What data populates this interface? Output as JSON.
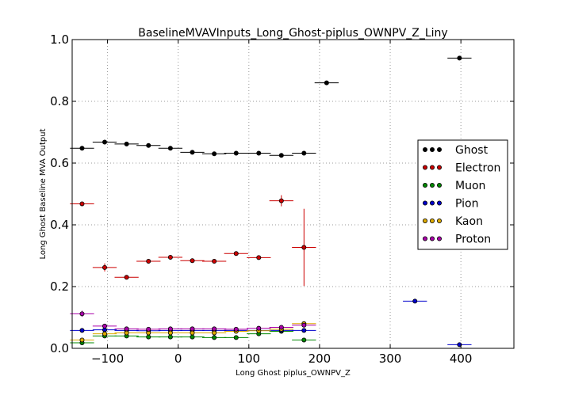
{
  "chart_data": {
    "type": "scatter",
    "title": "BaselineMVAVInputs_Long_Ghost-piplus_OWNPV_Z_Liny",
    "xlabel": "Long Ghost piplus_OWNPV_Z",
    "ylabel": "Long Ghost Baseline MVA Output",
    "xlim": [
      -150,
      475
    ],
    "ylim": [
      0.0,
      1.0
    ],
    "xticks": [
      -100,
      0,
      100,
      200,
      300,
      400
    ],
    "xtick_labels": [
      "−100",
      "0",
      "100",
      "200",
      "300",
      "400"
    ],
    "yticks": [
      0.0,
      0.2,
      0.4,
      0.6,
      0.8,
      1.0
    ],
    "ytick_labels": [
      "0.0",
      "0.2",
      "0.4",
      "0.6",
      "0.8",
      "1.0"
    ],
    "grid": true,
    "legend_position": "right",
    "series": [
      {
        "name": "Ghost",
        "color": "#000000",
        "points": [
          {
            "x": -136,
            "xerr": 17,
            "y": 0.648,
            "yerr": 0.004
          },
          {
            "x": -104,
            "xerr": 17,
            "y": 0.668,
            "yerr": 0.004
          },
          {
            "x": -73,
            "xerr": 17,
            "y": 0.662,
            "yerr": 0.003
          },
          {
            "x": -42,
            "xerr": 17,
            "y": 0.657,
            "yerr": 0.003
          },
          {
            "x": -11,
            "xerr": 17,
            "y": 0.648,
            "yerr": 0.003
          },
          {
            "x": 20,
            "xerr": 17,
            "y": 0.635,
            "yerr": 0.003
          },
          {
            "x": 51,
            "xerr": 17,
            "y": 0.63,
            "yerr": 0.003
          },
          {
            "x": 82,
            "xerr": 17,
            "y": 0.632,
            "yerr": 0.003
          },
          {
            "x": 114,
            "xerr": 17,
            "y": 0.632,
            "yerr": 0.003
          },
          {
            "x": 146,
            "xerr": 17,
            "y": 0.625,
            "yerr": 0.004
          },
          {
            "x": 178,
            "xerr": 17,
            "y": 0.632,
            "yerr": 0.004
          },
          {
            "x": 210,
            "xerr": 17,
            "y": 0.86,
            "yerr": 0.004
          },
          {
            "x": 398,
            "xerr": 17,
            "y": 0.94,
            "yerr": 0.004
          }
        ]
      },
      {
        "name": "Electron",
        "color": "#cc0000",
        "points": [
          {
            "x": -136,
            "xerr": 17,
            "y": 0.468,
            "yerr": 0.004
          },
          {
            "x": -104,
            "xerr": 17,
            "y": 0.262,
            "yerr": 0.013
          },
          {
            "x": -73,
            "xerr": 17,
            "y": 0.23,
            "yerr": 0.005
          },
          {
            "x": -42,
            "xerr": 17,
            "y": 0.282,
            "yerr": 0.005
          },
          {
            "x": -11,
            "xerr": 17,
            "y": 0.295,
            "yerr": 0.005
          },
          {
            "x": 20,
            "xerr": 17,
            "y": 0.284,
            "yerr": 0.005
          },
          {
            "x": 51,
            "xerr": 17,
            "y": 0.282,
            "yerr": 0.005
          },
          {
            "x": 82,
            "xerr": 17,
            "y": 0.307,
            "yerr": 0.005
          },
          {
            "x": 114,
            "xerr": 17,
            "y": 0.294,
            "yerr": 0.005
          },
          {
            "x": 146,
            "xerr": 17,
            "y": 0.478,
            "yerr": 0.018
          },
          {
            "x": 178,
            "xerr": 17,
            "y": 0.327,
            "yerr": 0.125
          }
        ]
      },
      {
        "name": "Muon",
        "color": "#008800",
        "points": [
          {
            "x": -136,
            "xerr": 17,
            "y": 0.018,
            "yerr": 0.004
          },
          {
            "x": -104,
            "xerr": 17,
            "y": 0.04,
            "yerr": 0.004
          },
          {
            "x": -73,
            "xerr": 17,
            "y": 0.04,
            "yerr": 0.003
          },
          {
            "x": -42,
            "xerr": 17,
            "y": 0.037,
            "yerr": 0.003
          },
          {
            "x": -11,
            "xerr": 17,
            "y": 0.037,
            "yerr": 0.003
          },
          {
            "x": 20,
            "xerr": 17,
            "y": 0.037,
            "yerr": 0.003
          },
          {
            "x": 51,
            "xerr": 17,
            "y": 0.035,
            "yerr": 0.003
          },
          {
            "x": 82,
            "xerr": 17,
            "y": 0.035,
            "yerr": 0.003
          },
          {
            "x": 114,
            "xerr": 17,
            "y": 0.047,
            "yerr": 0.003
          },
          {
            "x": 146,
            "xerr": 17,
            "y": 0.055,
            "yerr": 0.004
          },
          {
            "x": 178,
            "xerr": 17,
            "y": 0.027,
            "yerr": 0.004
          }
        ]
      },
      {
        "name": "Pion",
        "color": "#0000cc",
        "points": [
          {
            "x": -136,
            "xerr": 17,
            "y": 0.058,
            "yerr": 0.003
          },
          {
            "x": -104,
            "xerr": 17,
            "y": 0.06,
            "yerr": 0.003
          },
          {
            "x": -73,
            "xerr": 17,
            "y": 0.058,
            "yerr": 0.003
          },
          {
            "x": -42,
            "xerr": 17,
            "y": 0.057,
            "yerr": 0.003
          },
          {
            "x": -11,
            "xerr": 17,
            "y": 0.058,
            "yerr": 0.003
          },
          {
            "x": 20,
            "xerr": 17,
            "y": 0.058,
            "yerr": 0.003
          },
          {
            "x": 51,
            "xerr": 17,
            "y": 0.058,
            "yerr": 0.003
          },
          {
            "x": 82,
            "xerr": 17,
            "y": 0.058,
            "yerr": 0.003
          },
          {
            "x": 114,
            "xerr": 17,
            "y": 0.058,
            "yerr": 0.003
          },
          {
            "x": 146,
            "xerr": 17,
            "y": 0.058,
            "yerr": 0.003
          },
          {
            "x": 178,
            "xerr": 17,
            "y": 0.058,
            "yerr": 0.003
          },
          {
            "x": 335,
            "xerr": 17,
            "y": 0.153,
            "yerr": 0.003
          },
          {
            "x": 398,
            "xerr": 17,
            "y": 0.012,
            "yerr": 0.003
          }
        ]
      },
      {
        "name": "Kaon",
        "color": "#ddaa00",
        "points": [
          {
            "x": -136,
            "xerr": 17,
            "y": 0.027,
            "yerr": 0.003
          },
          {
            "x": -104,
            "xerr": 17,
            "y": 0.047,
            "yerr": 0.003
          },
          {
            "x": -73,
            "xerr": 17,
            "y": 0.05,
            "yerr": 0.003
          },
          {
            "x": -42,
            "xerr": 17,
            "y": 0.05,
            "yerr": 0.003
          },
          {
            "x": -11,
            "xerr": 17,
            "y": 0.05,
            "yerr": 0.003
          },
          {
            "x": 20,
            "xerr": 17,
            "y": 0.05,
            "yerr": 0.003
          },
          {
            "x": 51,
            "xerr": 17,
            "y": 0.05,
            "yerr": 0.003
          },
          {
            "x": 82,
            "xerr": 17,
            "y": 0.055,
            "yerr": 0.003
          },
          {
            "x": 114,
            "xerr": 17,
            "y": 0.057,
            "yerr": 0.003
          },
          {
            "x": 146,
            "xerr": 17,
            "y": 0.062,
            "yerr": 0.004
          },
          {
            "x": 178,
            "xerr": 17,
            "y": 0.08,
            "yerr": 0.004
          }
        ]
      },
      {
        "name": "Proton",
        "color": "#aa00aa",
        "points": [
          {
            "x": -136,
            "xerr": 17,
            "y": 0.112,
            "yerr": 0.01
          },
          {
            "x": -104,
            "xerr": 17,
            "y": 0.072,
            "yerr": 0.005
          },
          {
            "x": -73,
            "xerr": 17,
            "y": 0.063,
            "yerr": 0.004
          },
          {
            "x": -42,
            "xerr": 17,
            "y": 0.062,
            "yerr": 0.004
          },
          {
            "x": -11,
            "xerr": 17,
            "y": 0.063,
            "yerr": 0.004
          },
          {
            "x": 20,
            "xerr": 17,
            "y": 0.063,
            "yerr": 0.004
          },
          {
            "x": 51,
            "xerr": 17,
            "y": 0.063,
            "yerr": 0.004
          },
          {
            "x": 82,
            "xerr": 17,
            "y": 0.062,
            "yerr": 0.004
          },
          {
            "x": 114,
            "xerr": 17,
            "y": 0.065,
            "yerr": 0.004
          },
          {
            "x": 146,
            "xerr": 17,
            "y": 0.068,
            "yerr": 0.004
          },
          {
            "x": 178,
            "xerr": 17,
            "y": 0.075,
            "yerr": 0.005
          }
        ]
      }
    ]
  }
}
